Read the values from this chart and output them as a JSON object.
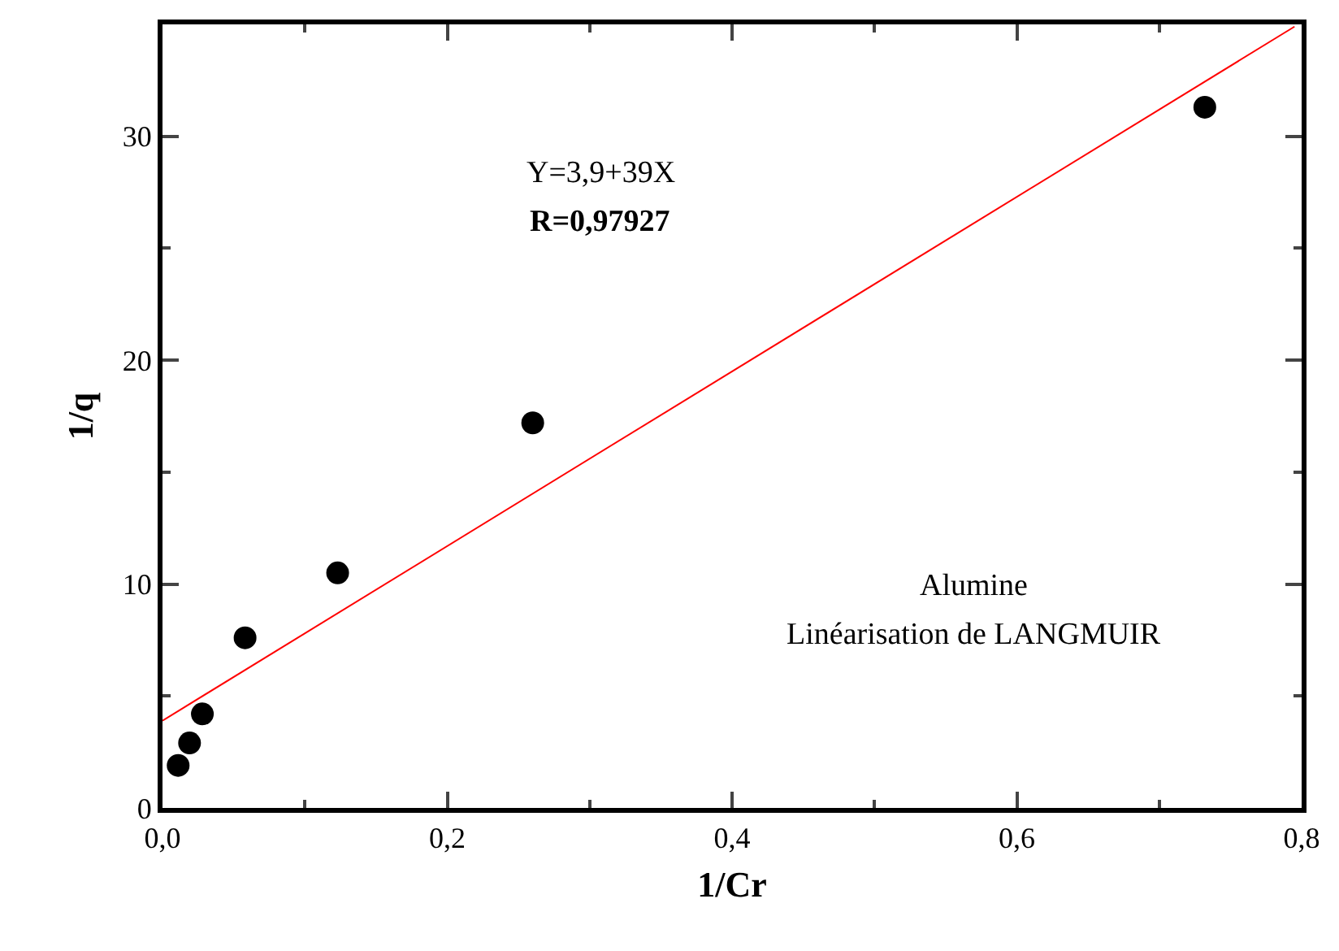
{
  "chart_data": {
    "type": "scatter",
    "xlabel": "1/Cr",
    "ylabel": "1/q",
    "xlim": [
      0,
      0.8
    ],
    "ylim": [
      0,
      35
    ],
    "xticks": [
      {
        "value": 0,
        "label": "0,0"
      },
      {
        "value": 0.2,
        "label": "0,2"
      },
      {
        "value": 0.4,
        "label": "0,4"
      },
      {
        "value": 0.6,
        "label": "0,6"
      },
      {
        "value": 0.8,
        "label": "0,8"
      }
    ],
    "yticks": [
      0,
      10,
      20,
      30
    ],
    "grid": false,
    "series": [
      {
        "type": "scatter",
        "marker": "circle",
        "color": "#000000",
        "x": [
          0.011,
          0.019,
          0.028,
          0.058,
          0.123,
          0.26,
          0.732
        ],
        "values": [
          1.9,
          2.9,
          4.2,
          7.6,
          10.5,
          17.2,
          31.3
        ]
      },
      {
        "type": "line",
        "marker": "none",
        "color": "#ff0000",
        "x": [
          0,
          0.795
        ],
        "values": [
          3.9,
          34.9
        ]
      }
    ],
    "annotations": [
      "Y=3,9+39X",
      "R=0,97927",
      "Alumine",
      "Linéarisation de LANGMUIR"
    ]
  }
}
